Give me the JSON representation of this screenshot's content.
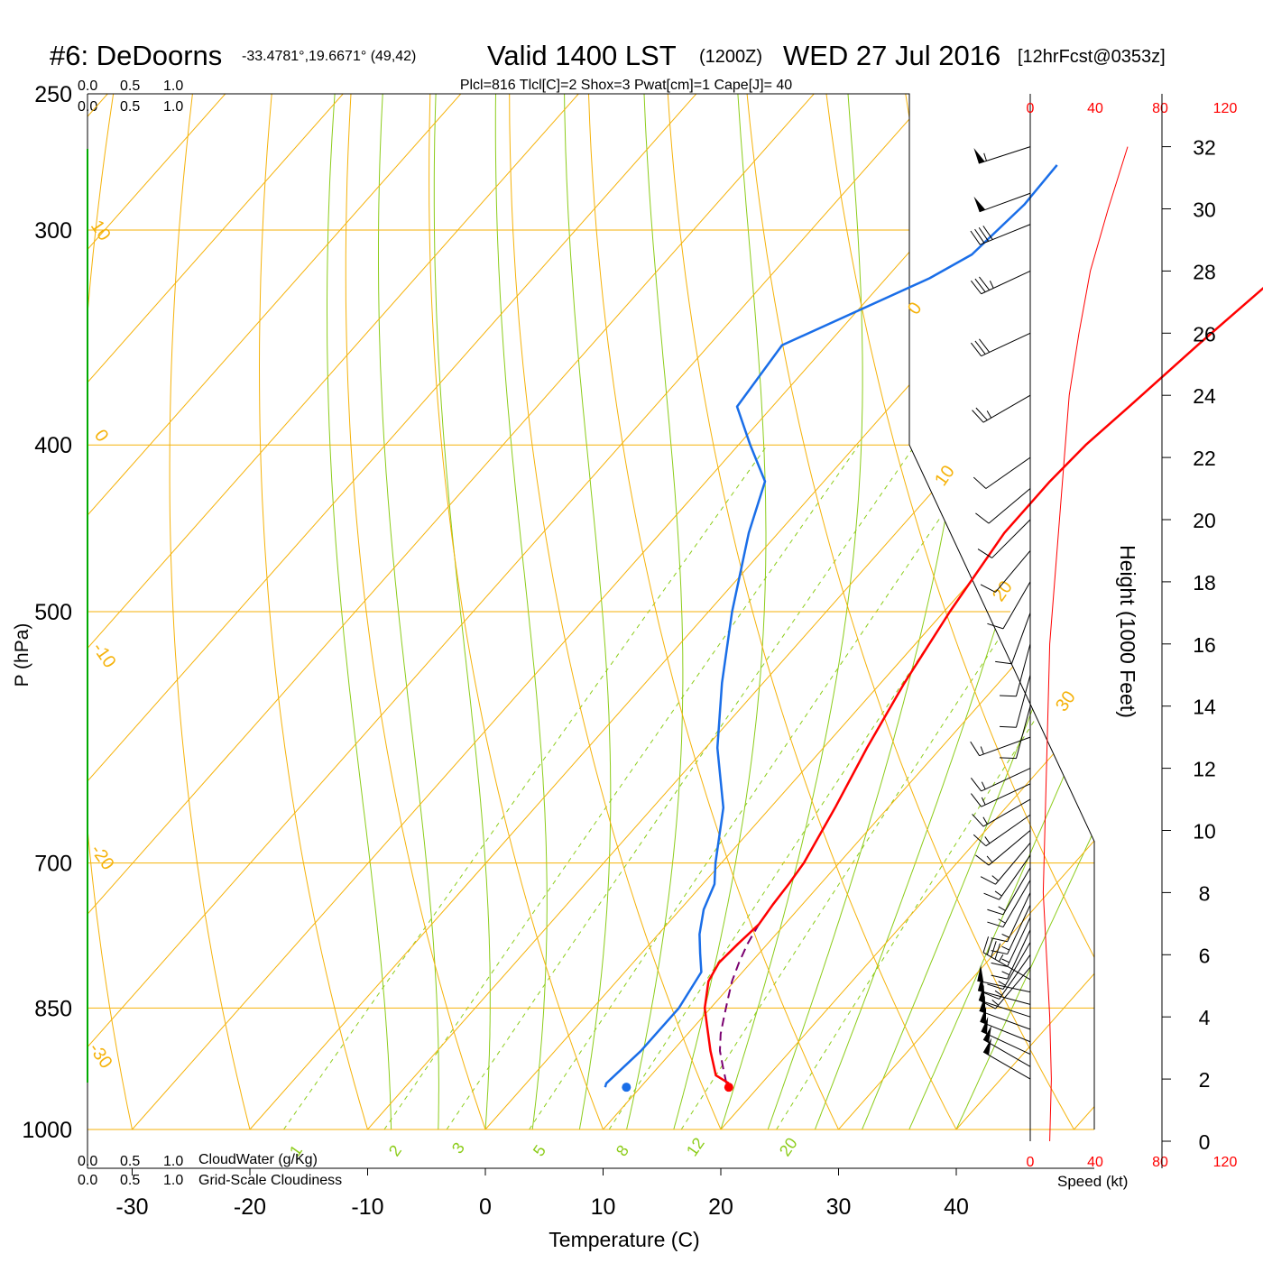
{
  "title": {
    "station": "#6: DeDoorns",
    "coords": "-33.4781°,19.6671° (49,42)",
    "valid": "Valid 1400 LST",
    "zulu": "(1200Z)",
    "date": "WED 27 Jul 2016",
    "forecast": "[12hrFcst@0353z]"
  },
  "indices": "Plcl=816 Tlcl[C]=2 Shox=3 Pwat[cm]=1 Cape[J]= 40",
  "colors": {
    "isobar": "#f5b20a",
    "dry_adiabat": "#f5b20a",
    "moist_adiabat": "#8ccc1a",
    "mixing_ratio": "#8ccc1a",
    "temperature": "#ff0000",
    "dewpoint": "#1a6ee8",
    "parcel": "#7a0070",
    "cloud_water": "#00aa00",
    "indices": "#a0005a",
    "speed": "#ff0000"
  },
  "cloud_scale": {
    "green": [
      "0.0",
      "0.5",
      "1.0"
    ],
    "black": [
      "0.0",
      "0.5",
      "1.0"
    ],
    "cloudwater_label": "CloudWater (g/Kg)",
    "cloudiness_label": "Grid-Scale Cloudiness"
  },
  "axes": {
    "pressure_label": "P (hPa)",
    "pressure_ticks": [
      "250",
      "300",
      "400",
      "500",
      "700",
      "850",
      "1000"
    ],
    "temperature_label": "Temperature (C)",
    "temperature_ticks": [
      "-30",
      "-20",
      "-10",
      "0",
      "10",
      "20",
      "30",
      "40"
    ],
    "height_label": "Height (1000 Feet)",
    "height_ticks": [
      "0",
      "2",
      "4",
      "6",
      "8",
      "10",
      "12",
      "14",
      "16",
      "18",
      "20",
      "22",
      "24",
      "26",
      "28",
      "30",
      "32"
    ],
    "speed_ticks": [
      "0",
      "40",
      "80",
      "120"
    ],
    "speed_label": "Speed (kt)"
  },
  "chart_data": {
    "type": "skew-t",
    "x_axis": {
      "label": "Temperature (C)",
      "range": [
        -34,
        36
      ]
    },
    "y_axis": {
      "label": "P (hPa)",
      "range": [
        1000,
        250
      ],
      "scale": "log"
    },
    "height_axis": {
      "label": "Height (1000 Feet)",
      "range": [
        0,
        32
      ]
    },
    "dry_adiabat_labels": [
      "10",
      "0",
      "-10",
      "-20",
      "-30",
      "0",
      "10",
      "20",
      "30"
    ],
    "mixing_ratio_labels": [
      "1",
      "2",
      "3",
      "5",
      "8",
      "12",
      "20"
    ],
    "temperature": [
      [
        940,
        17.2
      ],
      [
        930,
        15.5
      ],
      [
        900,
        13.2
      ],
      [
        870,
        11.0
      ],
      [
        850,
        9.5
      ],
      [
        820,
        7.8
      ],
      [
        800,
        7.3
      ],
      [
        780,
        7.5
      ],
      [
        760,
        7.8
      ],
      [
        740,
        7.5
      ],
      [
        720,
        7.3
      ],
      [
        700,
        7.0
      ],
      [
        650,
        5.5
      ],
      [
        600,
        3.7
      ],
      [
        550,
        2.0
      ],
      [
        500,
        0.5
      ],
      [
        450,
        -0.8
      ],
      [
        420,
        -0.8
      ],
      [
        400,
        -0.5
      ],
      [
        380,
        0.3
      ],
      [
        350,
        1.5
      ],
      [
        320,
        3.0
      ],
      [
        300,
        4.3
      ],
      [
        275,
        5.5
      ]
    ],
    "dewpoint": [
      [
        945,
        7.0
      ],
      [
        940,
        6.8
      ],
      [
        900,
        7.3
      ],
      [
        850,
        7.3
      ],
      [
        810,
        6.5
      ],
      [
        790,
        5.0
      ],
      [
        770,
        3.5
      ],
      [
        745,
        2.0
      ],
      [
        720,
        1.0
      ],
      [
        700,
        -0.5
      ],
      [
        650,
        -4.0
      ],
      [
        600,
        -9.0
      ],
      [
        550,
        -13.5
      ],
      [
        500,
        -18.0
      ],
      [
        450,
        -22.5
      ],
      [
        420,
        -25.0
      ],
      [
        400,
        -29.0
      ],
      [
        380,
        -33.0
      ],
      [
        350,
        -33.8
      ],
      [
        320,
        -26.3
      ],
      [
        310,
        -24.5
      ],
      [
        290,
        -23.8
      ],
      [
        275,
        -24.0
      ]
    ],
    "parcel": [
      [
        940,
        17.0
      ],
      [
        920,
        15.5
      ],
      [
        900,
        14.0
      ],
      [
        880,
        12.8
      ],
      [
        860,
        11.8
      ],
      [
        840,
        10.8
      ],
      [
        820,
        9.8
      ],
      [
        800,
        9.0
      ],
      [
        780,
        8.3
      ],
      [
        760,
        7.8
      ],
      [
        740,
        7.5
      ]
    ],
    "surface_temperature": 17.5,
    "surface_dewpoint": 8.8,
    "wind_speed_kt": [
      [
        0,
        12
      ],
      [
        2,
        13
      ],
      [
        4,
        12
      ],
      [
        6,
        10
      ],
      [
        8,
        8
      ],
      [
        10,
        9
      ],
      [
        12,
        10
      ],
      [
        14,
        11
      ],
      [
        16,
        12
      ],
      [
        18,
        15
      ],
      [
        20,
        18
      ],
      [
        22,
        21
      ],
      [
        24,
        24
      ],
      [
        26,
        30
      ],
      [
        28,
        37
      ],
      [
        30,
        48
      ],
      [
        32,
        60
      ]
    ],
    "wind_barbs": [
      {
        "h": 2.0,
        "dir": 300,
        "spd": 50
      },
      {
        "h": 2.4,
        "dir": 300,
        "spd": 50
      },
      {
        "h": 2.8,
        "dir": 295,
        "spd": 50
      },
      {
        "h": 3.2,
        "dir": 292,
        "spd": 50
      },
      {
        "h": 3.6,
        "dir": 290,
        "spd": 50
      },
      {
        "h": 4.0,
        "dir": 288,
        "spd": 50
      },
      {
        "h": 4.4,
        "dir": 285,
        "spd": 50
      },
      {
        "h": 4.8,
        "dir": 282,
        "spd": 50
      },
      {
        "h": 5.2,
        "dir": 300,
        "spd": 45
      },
      {
        "h": 5.6,
        "dir": 220,
        "spd": 15
      },
      {
        "h": 6.0,
        "dir": 215,
        "spd": 15
      },
      {
        "h": 6.4,
        "dir": 210,
        "spd": 15
      },
      {
        "h": 6.8,
        "dir": 205,
        "spd": 15
      },
      {
        "h": 7.2,
        "dir": 205,
        "spd": 15
      },
      {
        "h": 7.6,
        "dir": 205,
        "spd": 15
      },
      {
        "h": 8.0,
        "dir": 205,
        "spd": 15
      },
      {
        "h": 8.4,
        "dir": 210,
        "spd": 15
      },
      {
        "h": 8.8,
        "dir": 210,
        "spd": 15
      },
      {
        "h": 9.2,
        "dir": 215,
        "spd": 15
      },
      {
        "h": 9.6,
        "dir": 220,
        "spd": 15
      },
      {
        "h": 10.0,
        "dir": 230,
        "spd": 15
      },
      {
        "h": 10.5,
        "dir": 235,
        "spd": 15
      },
      {
        "h": 11.0,
        "dir": 240,
        "spd": 15
      },
      {
        "h": 11.5,
        "dir": 245,
        "spd": 15
      },
      {
        "h": 12.0,
        "dir": 245,
        "spd": 15
      },
      {
        "h": 13.0,
        "dir": 250,
        "spd": 15
      },
      {
        "h": 14.0,
        "dir": 195,
        "spd": 10
      },
      {
        "h": 15.0,
        "dir": 195,
        "spd": 10
      },
      {
        "h": 16.0,
        "dir": 195,
        "spd": 10
      },
      {
        "h": 17.0,
        "dir": 200,
        "spd": 10
      },
      {
        "h": 18.0,
        "dir": 210,
        "spd": 10
      },
      {
        "h": 19.0,
        "dir": 220,
        "spd": 10
      },
      {
        "h": 20.0,
        "dir": 225,
        "spd": 10
      },
      {
        "h": 21.0,
        "dir": 230,
        "spd": 10
      },
      {
        "h": 22.0,
        "dir": 235,
        "spd": 10
      },
      {
        "h": 24.0,
        "dir": 240,
        "spd": 25
      },
      {
        "h": 26.0,
        "dir": 245,
        "spd": 30
      },
      {
        "h": 28.0,
        "dir": 245,
        "spd": 35
      },
      {
        "h": 29.5,
        "dir": 248,
        "spd": 40
      },
      {
        "h": 30.5,
        "dir": 250,
        "spd": 50
      },
      {
        "h": 32.0,
        "dir": 252,
        "spd": 55
      }
    ]
  }
}
